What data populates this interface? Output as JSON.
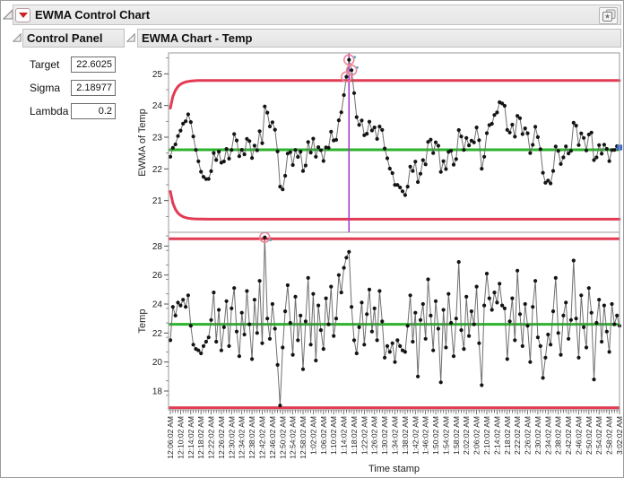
{
  "window": {
    "title": "EWMA Control Chart"
  },
  "control_panel": {
    "title": "Control Panel",
    "fields": [
      {
        "label": "Target",
        "value": "22.6025"
      },
      {
        "label": "Sigma",
        "value": "2.18977"
      },
      {
        "label": "Lambda",
        "value": "0.2"
      }
    ]
  },
  "chart_panel": {
    "title": "EWMA Chart - Temp"
  },
  "colors": {
    "limit_red": "#e23b53",
    "center_green": "#2db32d",
    "reference_purple": "#a833cc",
    "point_black": "#141414",
    "connector_gray": "#6f6f6f",
    "ooc_ring": "#ee8596",
    "last_point_blue": "#3a6ce0",
    "selection_teal": "#3ba7c4",
    "frame_gray": "#9a9a9a"
  },
  "chart_data": [
    {
      "type": "line",
      "name": "ewma-chart",
      "ylabel": "EWMA of Temp",
      "ylim": [
        20.0,
        25.66
      ],
      "yticks": [
        21,
        22,
        23,
        24,
        25
      ],
      "yminor_step": 0.5,
      "center_line": 22.6025,
      "target": 22.6025,
      "sigma": 2.18977,
      "lambda": 0.2,
      "limit_type": "ewma-funnel",
      "ucl_asymptote": 24.7923,
      "lcl_asymptote": 20.4127,
      "series_note": "EWMA series derived from temp values with lambda 0.2 starting at target",
      "out_of_control_rule": "ewma above ucl",
      "reference_line_index": 70,
      "last_point_marker": "blue-square",
      "grid": false,
      "legend": false
    },
    {
      "type": "line",
      "name": "temp-chart",
      "ylabel": "Temp",
      "xlabel": "Time stamp",
      "ylim": [
        16.7,
        28.92
      ],
      "yticks": [
        18,
        20,
        22,
        24,
        26,
        28
      ],
      "yminor_step": 1,
      "center_line": 22.6025,
      "ucl": 28.5,
      "lcl": 16.85,
      "grid": false,
      "legend": false,
      "points_per_label": 4,
      "x_tick_labels": [
        "12:06:02 AM",
        "12:10:02 AM",
        "12:14:02 AM",
        "12:18:02 AM",
        "12:22:02 AM",
        "12:26:02 AM",
        "12:30:02 AM",
        "12:34:02 AM",
        "12:38:02 AM",
        "12:42:02 AM",
        "12:46:02 AM",
        "12:50:02 AM",
        "12:54:02 AM",
        "12:58:02 AM",
        "1:02:02 AM",
        "1:06:02 AM",
        "1:10:02 AM",
        "1:14:02 AM",
        "1:18:02 AM",
        "1:22:02 AM",
        "1:26:02 AM",
        "1:30:02 AM",
        "1:34:02 AM",
        "1:38:02 AM",
        "1:42:02 AM",
        "1:46:02 AM",
        "1:50:02 AM",
        "1:54:02 AM",
        "1:58:02 AM",
        "2:02:02 AM",
        "2:06:02 AM",
        "2:10:02 AM",
        "2:14:02 AM",
        "2:18:02 AM",
        "2:22:02 AM",
        "2:26:02 AM",
        "2:30:02 AM",
        "2:34:02 AM",
        "2:38:02 AM",
        "2:42:02 AM",
        "2:46:02 AM",
        "2:50:02 AM",
        "2:54:02 AM",
        "2:58:02 AM",
        "3:02:02 AM"
      ],
      "values": [
        21.5,
        23.8,
        23.2,
        24.1,
        23.9,
        24.3,
        23.8,
        24.6,
        22.5,
        21.2,
        20.9,
        20.8,
        20.6,
        21.1,
        21.4,
        21.7,
        22.9,
        24.8,
        21.4,
        23.6,
        20.8,
        22.4,
        24.2,
        21.1,
        23.7,
        25.1,
        22.1,
        20.4,
        23.4,
        21.9,
        24.9,
        22.6,
        20.2,
        24.3,
        22.0,
        25.6,
        21.3,
        28.6,
        23.0,
        21.6,
        24.0,
        22.3,
        19.8,
        17.0,
        21.0,
        23.5,
        25.3,
        22.7,
        20.5,
        24.5,
        21.5,
        23.2,
        19.5,
        22.8,
        25.8,
        21.2,
        24.7,
        20.1,
        23.9,
        22.2,
        20.9,
        24.4,
        22.6,
        25.2,
        21.8,
        23.0,
        26.0,
        24.8,
        26.5,
        27.2,
        27.6,
        23.8,
        21.5,
        20.6,
        22.4,
        24.1,
        21.2,
        23.3,
        25.0,
        22.1,
        23.7,
        21.5,
        24.9,
        22.8,
        20.3,
        21.1,
        20.7,
        21.3,
        20.0,
        21.5,
        21.1,
        20.8,
        20.7,
        22.5,
        24.6,
        21.4,
        23.4,
        19.0,
        22.9,
        24.0,
        21.6,
        25.7,
        23.2,
        20.8,
        24.2,
        22.3,
        18.6,
        23.6,
        21.0,
        24.7,
        22.7,
        20.4,
        23.0,
        26.9,
        22.2,
        20.9,
        24.5,
        21.8,
        23.5,
        22.6,
        25.2,
        21.3,
        18.4,
        23.9,
        26.1,
        24.4,
        23.6,
        24.8,
        24.1,
        25.4,
        23.9,
        23.7,
        20.2,
        22.8,
        24.4,
        21.5,
        26.3,
        23.3,
        21.1,
        24.0,
        22.5,
        20.0,
        23.8,
        25.6,
        21.7,
        21.1,
        18.9,
        20.3,
        21.9,
        21.2,
        23.5,
        25.8,
        22.0,
        20.5,
        23.2,
        24.1,
        21.6,
        22.9,
        27.0,
        23.0,
        20.3,
        24.6,
        22.4,
        21.0,
        25.1,
        23.4,
        18.8,
        22.7,
        24.3,
        21.4,
        23.9,
        22.1,
        20.7,
        24.0,
        22.6,
        23.2,
        22.5
      ]
    }
  ]
}
